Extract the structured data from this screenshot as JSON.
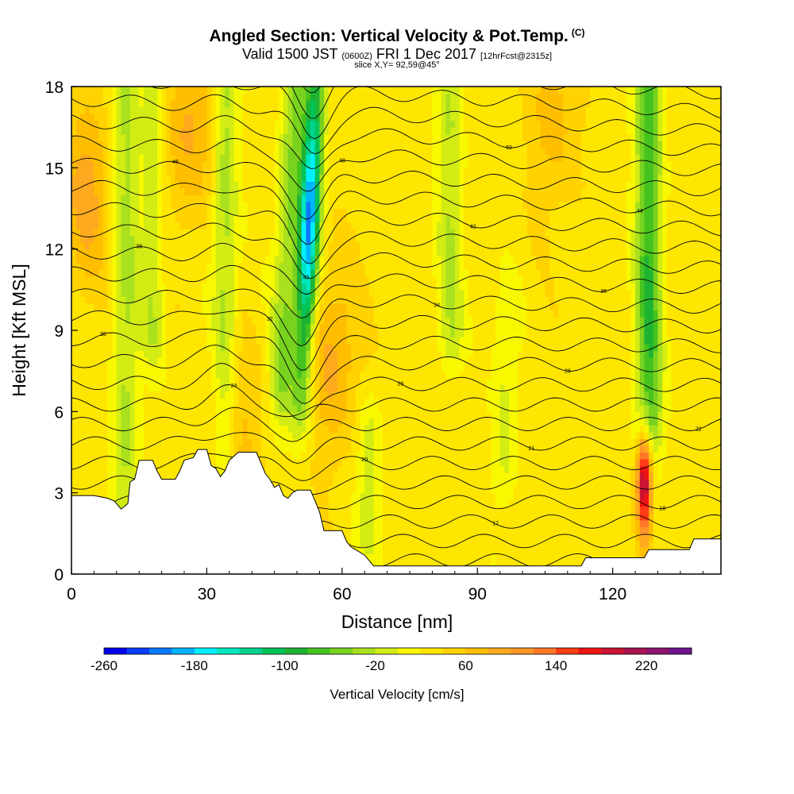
{
  "header": {
    "title": "Angled Section: Vertical Velocity & Pot.Temp.",
    "title_tag": "(C)",
    "valid_main": "Valid 1500 JST",
    "valid_utc": "(0600Z)",
    "valid_date": "FRI 1 Dec 2017",
    "valid_fcst": "[12hrFcst@2315z]",
    "slice": "slice X,Y= 92,59@45°"
  },
  "chart_data": {
    "type": "heatmap",
    "title": "Angled Section: Vertical Velocity & Pot.Temp.",
    "xlabel": "Distance [nm]",
    "ylabel": "Height [Kft MSL]",
    "xlim": [
      0,
      144
    ],
    "ylim": [
      0,
      18
    ],
    "x_ticks": [
      0,
      30,
      60,
      90,
      120
    ],
    "y_ticks": [
      0,
      3,
      6,
      9,
      12,
      15,
      18
    ],
    "x_tick_labels": [
      "0",
      "30",
      "60",
      "90",
      "120"
    ],
    "y_tick_labels": [
      "0",
      "3",
      "6",
      "9",
      "12",
      "15",
      "18"
    ],
    "colorbar": {
      "label": "Vertical Velocity [cm/s]",
      "min": -260,
      "max": 260,
      "step": 20,
      "tick_labels": [
        "-260",
        "-180",
        "-100",
        "-20",
        "60",
        "140",
        "220"
      ],
      "tick_values": [
        -260,
        -180,
        -100,
        -20,
        60,
        140,
        220
      ],
      "colors": [
        "#0000ee",
        "#0a3cff",
        "#0a78ff",
        "#00b4ff",
        "#00f0ff",
        "#00e6be",
        "#00d28c",
        "#00c35a",
        "#1eb432",
        "#46c31e",
        "#78d21e",
        "#aae11e",
        "#d2ec14",
        "#f8f800",
        "#ffe600",
        "#ffd200",
        "#ffbe00",
        "#ffaa1e",
        "#ff9628",
        "#ff7828",
        "#ff3c14",
        "#ee1414",
        "#cc1432",
        "#aa1450",
        "#8c146e",
        "#6e148c"
      ]
    },
    "updrafts": [
      {
        "x": 12,
        "zmin": 0,
        "zmax": 18,
        "w": -55
      },
      {
        "x": 18,
        "zmin": 9,
        "zmax": 18,
        "w": -45
      },
      {
        "x": 34,
        "zmin": 3,
        "zmax": 18,
        "w": -60
      },
      {
        "x": 48,
        "zmin": 7,
        "zmax": 18,
        "w": -70
      },
      {
        "x": 52.5,
        "zmin": 6.5,
        "zmax": 18,
        "w": -230
      },
      {
        "x": 66,
        "zmin": 2,
        "zmax": 5,
        "w": -40
      },
      {
        "x": 84,
        "zmin": 9,
        "zmax": 18,
        "w": -50
      },
      {
        "x": 96,
        "zmin": 4,
        "zmax": 9,
        "w": -35
      },
      {
        "x": 128,
        "zmin": 6,
        "zmax": 18,
        "w": -110
      }
    ],
    "warm_cells": [
      {
        "x": 3,
        "z": 14,
        "w": 60
      },
      {
        "x": 26,
        "z": 16.5,
        "w": 55
      },
      {
        "x": 58,
        "z": 8,
        "w": 55
      },
      {
        "x": 107,
        "z": 17,
        "w": 40
      },
      {
        "x": 127,
        "z": 3.5,
        "w": 180
      },
      {
        "x": 36,
        "z": 5,
        "w": 45
      }
    ],
    "isentrope_labels": [
      "15",
      "16",
      "17",
      "18",
      "19",
      "20",
      "21",
      "22",
      "24",
      "26",
      "28",
      "30",
      "32",
      "34",
      "36",
      "38",
      "40",
      "42",
      "44",
      "46",
      "48",
      "50"
    ],
    "terrain_kft": [
      [
        0,
        2.9
      ],
      [
        5,
        2.9
      ],
      [
        8,
        2.8
      ],
      [
        9.5,
        2.7
      ],
      [
        11,
        2.4
      ],
      [
        12.5,
        2.6
      ],
      [
        13,
        3.4
      ],
      [
        14,
        3.5
      ],
      [
        15,
        4.2
      ],
      [
        18,
        4.2
      ],
      [
        19,
        3.8
      ],
      [
        20,
        3.5
      ],
      [
        23,
        3.5
      ],
      [
        24,
        3.8
      ],
      [
        25,
        4.2
      ],
      [
        27,
        4.3
      ],
      [
        28,
        4.6
      ],
      [
        30,
        4.6
      ],
      [
        31,
        4.0
      ],
      [
        32,
        3.9
      ],
      [
        33,
        3.6
      ],
      [
        34,
        3.8
      ],
      [
        35,
        4.2
      ],
      [
        37,
        4.5
      ],
      [
        41,
        4.5
      ],
      [
        42,
        4.1
      ],
      [
        43,
        3.7
      ],
      [
        44,
        3.5
      ],
      [
        45,
        3.2
      ],
      [
        46,
        3.3
      ],
      [
        47,
        2.9
      ],
      [
        48,
        2.8
      ],
      [
        49,
        3.0
      ],
      [
        50,
        3.1
      ],
      [
        53,
        3.1
      ],
      [
        54,
        2.7
      ],
      [
        55,
        2.3
      ],
      [
        56,
        1.6
      ],
      [
        57,
        1.6
      ],
      [
        60,
        1.6
      ],
      [
        61,
        1.2
      ],
      [
        62,
        1.0
      ],
      [
        64,
        0.8
      ],
      [
        65,
        0.7
      ],
      [
        66,
        0.5
      ],
      [
        67,
        0.3
      ],
      [
        88,
        0.3
      ],
      [
        99,
        0.3
      ],
      [
        105,
        0.3
      ],
      [
        113,
        0.3
      ],
      [
        114,
        0.6
      ],
      [
        124,
        0.6
      ],
      [
        127,
        0.6
      ],
      [
        128,
        0.9
      ],
      [
        137,
        0.9
      ],
      [
        138,
        1.3
      ],
      [
        144,
        1.3
      ]
    ]
  }
}
